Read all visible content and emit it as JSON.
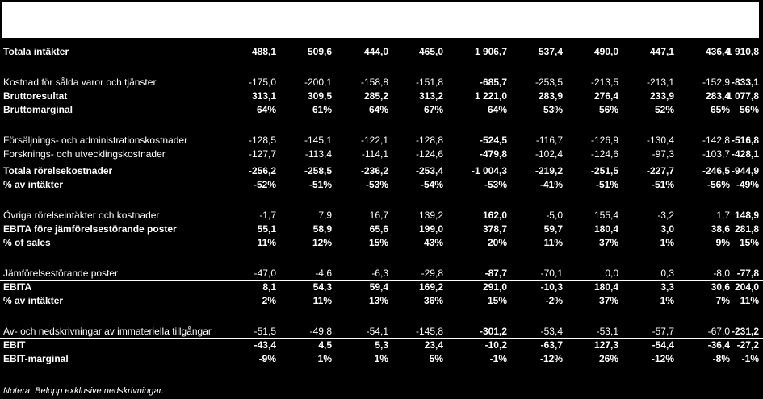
{
  "rows": [
    {
      "label": "Totala intäkter",
      "bold": true,
      "line": false,
      "values": [
        "488,1",
        "509,6",
        "444,0",
        "465,0",
        "1 906,7",
        "537,4",
        "490,0",
        "447,1",
        "436,4",
        "1 910,8"
      ]
    },
    {
      "label": "Kostnad för sålda varor och tjänster",
      "bold": false,
      "line": false,
      "values": [
        "-175,0",
        "-200,1",
        "-158,8",
        "-151,8",
        "-685,7",
        "-253,5",
        "-213,5",
        "-213,1",
        "-152,9",
        "-833,1"
      ]
    },
    {
      "label": "Bruttoresultat",
      "bold": true,
      "line": true,
      "values": [
        "313,1",
        "309,5",
        "285,2",
        "313,2",
        "1 221,0",
        "283,9",
        "276,4",
        "233,9",
        "283,4",
        "1 077,8"
      ]
    },
    {
      "label": "Bruttomarginal",
      "bold": true,
      "line": false,
      "values": [
        "64%",
        "61%",
        "64%",
        "67%",
        "64%",
        "53%",
        "56%",
        "52%",
        "65%",
        "56%"
      ]
    },
    {
      "label": "Försäljnings- och administrationskostnader",
      "bold": false,
      "line": false,
      "values": [
        "-128,5",
        "-145,1",
        "-122,1",
        "-128,8",
        "-524,5",
        "-116,7",
        "-126,9",
        "-130,4",
        "-142,8",
        "-516,8"
      ]
    },
    {
      "label": "Forsknings- och utvecklingskostnader",
      "bold": false,
      "line": false,
      "values": [
        "-127,7",
        "-113,4",
        "-114,1",
        "-124,6",
        "-479,8",
        "-102,4",
        "-124,6",
        "-97,3",
        "-103,7",
        "-428,1"
      ]
    },
    {
      "label": "Totala rörelsekostnader",
      "bold": true,
      "line": true,
      "values": [
        "-256,2",
        "-258,5",
        "-236,2",
        "-253,4",
        "-1 004,3",
        "-219,2",
        "-251,5",
        "-227,7",
        "-246,5",
        "-944,9"
      ]
    },
    {
      "label": "% av intäkter",
      "bold": true,
      "line": false,
      "values": [
        "-52%",
        "-51%",
        "-53%",
        "-54%",
        "-53%",
        "-41%",
        "-51%",
        "-51%",
        "-56%",
        "-49%"
      ]
    },
    {
      "label": "Övriga rörelseintäkter och kostnader",
      "bold": false,
      "line": false,
      "values": [
        "-1,7",
        "7,9",
        "16,7",
        "139,2",
        "162,0",
        "-5,0",
        "155,4",
        "-3,2",
        "1,7",
        "148,9"
      ]
    },
    {
      "label": "EBITA före jämförelsestörande poster",
      "bold": true,
      "line": true,
      "values": [
        "55,1",
        "58,9",
        "65,6",
        "199,0",
        "378,7",
        "59,7",
        "180,4",
        "3,0",
        "38,6",
        "281,8"
      ]
    },
    {
      "label": "% of sales",
      "bold": true,
      "line": false,
      "values": [
        "11%",
        "12%",
        "15%",
        "43%",
        "20%",
        "11%",
        "37%",
        "1%",
        "9%",
        "15%"
      ]
    },
    {
      "label": "Jämförelsestörande poster",
      "bold": false,
      "line": false,
      "values": [
        "-47,0",
        "-4,6",
        "-6,3",
        "-29,8",
        "-87,7",
        "-70,1",
        "0,0",
        "0,3",
        "-8,0",
        "-77,8"
      ]
    },
    {
      "label": "EBITA",
      "bold": true,
      "line": true,
      "values": [
        "8,1",
        "54,3",
        "59,4",
        "169,2",
        "291,0",
        "-10,3",
        "180,4",
        "3,3",
        "30,6",
        "204,0"
      ]
    },
    {
      "label": "% av intäkter",
      "bold": true,
      "line": false,
      "values": [
        "2%",
        "11%",
        "13%",
        "36%",
        "15%",
        "-2%",
        "37%",
        "1%",
        "7%",
        "11%"
      ]
    },
    {
      "label": "Av- och nedskrivningar av immateriella tillgångar",
      "bold": false,
      "line": false,
      "values": [
        "-51,5",
        "-49,8",
        "-54,1",
        "-145,8",
        "-301,2",
        "-53,4",
        "-53,1",
        "-57,7",
        "-67,0",
        "-231,2"
      ]
    },
    {
      "label": "EBIT",
      "bold": true,
      "line": true,
      "values": [
        "-43,4",
        "4,5",
        "5,3",
        "23,4",
        "-10,2",
        "-63,7",
        "127,3",
        "-54,4",
        "-36,4",
        "-27,2"
      ]
    },
    {
      "label": "EBIT-marginal",
      "bold": true,
      "line": false,
      "values": [
        "-9%",
        "1%",
        "1%",
        "5%",
        "-1%",
        "-12%",
        "26%",
        "-12%",
        "-8%",
        "-1%"
      ]
    }
  ],
  "note": "Notera: Belopp exklusive nedskrivningar."
}
